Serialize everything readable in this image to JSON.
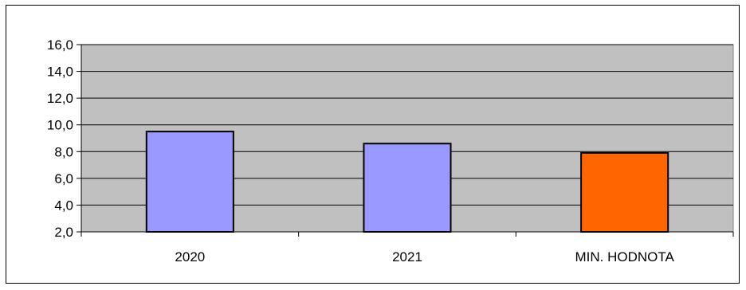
{
  "chart_data": {
    "type": "bar",
    "categories": [
      "2020",
      "2021",
      "MIN. HODNOTA"
    ],
    "values": [
      9.5,
      8.6,
      7.9
    ],
    "bar_colors": [
      "#9999ff",
      "#9999ff",
      "#ff6600"
    ],
    "plot_background": "#c0c0c0",
    "ylim": [
      2.0,
      16.0
    ],
    "yticks": [
      "2,0",
      "4,0",
      "6,0",
      "8,0",
      "10,0",
      "12,0",
      "14,0",
      "16,0"
    ],
    "grid": true,
    "title": "",
    "xlabel": "",
    "ylabel": ""
  }
}
